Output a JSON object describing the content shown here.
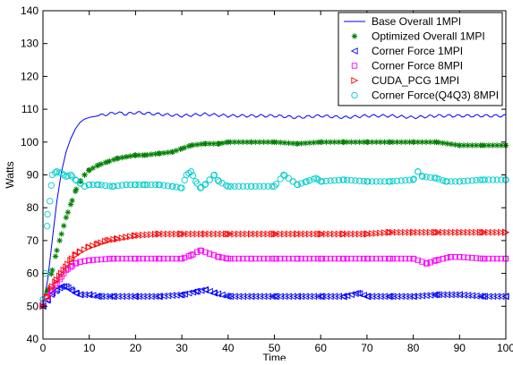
{
  "chart_data": {
    "type": "scatter",
    "title": "",
    "xlabel": "Time",
    "ylabel": "Watts",
    "xlim": [
      0,
      100
    ],
    "ylim": [
      40,
      140
    ],
    "xticks": [
      0,
      10,
      20,
      30,
      40,
      50,
      60,
      70,
      80,
      90,
      100
    ],
    "yticks": [
      40,
      50,
      60,
      70,
      80,
      90,
      100,
      110,
      120,
      130,
      140
    ],
    "grid": false,
    "legend_position": "top-right",
    "series": [
      {
        "name": "Base Overall 1MPI",
        "style": "line",
        "marker": "none",
        "color": "#0000ff",
        "points": [
          [
            0,
            50
          ],
          [
            1,
            58
          ],
          [
            2,
            70
          ],
          [
            3,
            82
          ],
          [
            4,
            91
          ],
          [
            5,
            97
          ],
          [
            6,
            101
          ],
          [
            7,
            104
          ],
          [
            8,
            106
          ],
          [
            9,
            107
          ],
          [
            10,
            107.5
          ],
          [
            12,
            108
          ],
          [
            14,
            108.5
          ],
          [
            16,
            109
          ],
          [
            18,
            108.5
          ],
          [
            20,
            109
          ],
          [
            25,
            108.5
          ],
          [
            30,
            108
          ],
          [
            35,
            108.5
          ],
          [
            40,
            108
          ],
          [
            45,
            108
          ],
          [
            50,
            108
          ],
          [
            55,
            107.5
          ],
          [
            60,
            108
          ],
          [
            65,
            107.5
          ],
          [
            70,
            108
          ],
          [
            75,
            108
          ],
          [
            80,
            107.5
          ],
          [
            85,
            108
          ],
          [
            90,
            108
          ],
          [
            95,
            108
          ],
          [
            100,
            108
          ]
        ]
      },
      {
        "name": "Optimized Overall 1MPI",
        "style": "markers",
        "marker": "asterisk",
        "color": "#008000",
        "points": [
          [
            0,
            50
          ],
          [
            1,
            55
          ],
          [
            2,
            61
          ],
          [
            3,
            67
          ],
          [
            4,
            72
          ],
          [
            5,
            77
          ],
          [
            6,
            81
          ],
          [
            7,
            85
          ],
          [
            8,
            88
          ],
          [
            9,
            90
          ],
          [
            10,
            91.5
          ],
          [
            12,
            93
          ],
          [
            14,
            94
          ],
          [
            16,
            95
          ],
          [
            18,
            95.5
          ],
          [
            20,
            96
          ],
          [
            22,
            96
          ],
          [
            25,
            96.5
          ],
          [
            28,
            97
          ],
          [
            30,
            98
          ],
          [
            32,
            99
          ],
          [
            35,
            99.5
          ],
          [
            38,
            99.5
          ],
          [
            40,
            100
          ],
          [
            45,
            100
          ],
          [
            50,
            100
          ],
          [
            55,
            99.5
          ],
          [
            60,
            100
          ],
          [
            65,
            100
          ],
          [
            70,
            100
          ],
          [
            75,
            100
          ],
          [
            80,
            100
          ],
          [
            85,
            100
          ],
          [
            90,
            99
          ],
          [
            95,
            99
          ],
          [
            100,
            99
          ]
        ]
      },
      {
        "name": "Corner Force 1MPI",
        "style": "markers",
        "marker": "triangle-left",
        "color": "#0000ff",
        "points": [
          [
            0,
            50
          ],
          [
            1,
            52
          ],
          [
            2,
            54
          ],
          [
            3,
            55
          ],
          [
            4,
            56
          ],
          [
            5,
            56
          ],
          [
            6,
            55
          ],
          [
            7,
            54
          ],
          [
            8,
            53.5
          ],
          [
            10,
            53.5
          ],
          [
            12,
            53
          ],
          [
            15,
            53
          ],
          [
            20,
            53
          ],
          [
            25,
            53
          ],
          [
            30,
            53.5
          ],
          [
            33,
            54.5
          ],
          [
            35,
            55
          ],
          [
            37,
            54
          ],
          [
            40,
            53
          ],
          [
            45,
            53
          ],
          [
            50,
            53
          ],
          [
            55,
            53
          ],
          [
            60,
            53
          ],
          [
            65,
            53
          ],
          [
            68,
            54
          ],
          [
            70,
            53
          ],
          [
            75,
            53
          ],
          [
            80,
            53
          ],
          [
            85,
            53.5
          ],
          [
            90,
            53.5
          ],
          [
            95,
            53
          ],
          [
            100,
            53
          ]
        ]
      },
      {
        "name": "Corner Force 8MPI",
        "style": "markers",
        "marker": "square",
        "color": "#ff00ff",
        "points": [
          [
            0,
            51
          ],
          [
            1,
            53
          ],
          [
            2,
            55
          ],
          [
            3,
            57
          ],
          [
            4,
            59
          ],
          [
            5,
            61
          ],
          [
            6,
            62
          ],
          [
            7,
            63
          ],
          [
            8,
            63.5
          ],
          [
            10,
            64
          ],
          [
            15,
            64.5
          ],
          [
            20,
            64.5
          ],
          [
            25,
            64.5
          ],
          [
            30,
            64.5
          ],
          [
            32,
            65.5
          ],
          [
            34,
            67
          ],
          [
            36,
            66
          ],
          [
            38,
            65
          ],
          [
            40,
            64.5
          ],
          [
            45,
            64.5
          ],
          [
            50,
            64.5
          ],
          [
            55,
            64.5
          ],
          [
            60,
            64.5
          ],
          [
            65,
            64.5
          ],
          [
            70,
            64.5
          ],
          [
            75,
            64.5
          ],
          [
            80,
            64.5
          ],
          [
            83,
            63
          ],
          [
            85,
            64
          ],
          [
            88,
            65
          ],
          [
            90,
            65
          ],
          [
            95,
            64.5
          ],
          [
            100,
            64.5
          ]
        ]
      },
      {
        "name": "CUDA_PCG 1MPI",
        "style": "markers",
        "marker": "triangle-right",
        "color": "#ff0000",
        "points": [
          [
            0,
            50
          ],
          [
            1,
            53
          ],
          [
            2,
            56
          ],
          [
            3,
            58
          ],
          [
            4,
            60
          ],
          [
            5,
            62
          ],
          [
            6,
            64
          ],
          [
            7,
            65.5
          ],
          [
            8,
            66.5
          ],
          [
            10,
            68
          ],
          [
            12,
            69
          ],
          [
            14,
            70
          ],
          [
            16,
            70.5
          ],
          [
            18,
            71
          ],
          [
            20,
            71.5
          ],
          [
            25,
            72
          ],
          [
            30,
            72
          ],
          [
            35,
            72
          ],
          [
            40,
            72
          ],
          [
            45,
            72
          ],
          [
            50,
            72
          ],
          [
            55,
            72
          ],
          [
            60,
            72
          ],
          [
            65,
            72
          ],
          [
            70,
            72
          ],
          [
            75,
            72.5
          ],
          [
            80,
            72.5
          ],
          [
            85,
            72.5
          ],
          [
            90,
            72.5
          ],
          [
            95,
            72.5
          ],
          [
            100,
            72.5
          ]
        ]
      },
      {
        "name": "Corner Force(Q4Q3) 8MPI",
        "style": "markers",
        "marker": "circle",
        "color": "#00cccc",
        "points": [
          [
            0,
            52
          ],
          [
            0.5,
            60
          ],
          [
            1,
            78
          ],
          [
            1.5,
            82
          ],
          [
            2,
            90
          ],
          [
            3,
            91
          ],
          [
            4,
            90.5
          ],
          [
            5,
            89.5
          ],
          [
            6,
            90
          ],
          [
            7,
            88.5
          ],
          [
            8,
            87.5
          ],
          [
            9,
            86.5
          ],
          [
            10,
            87
          ],
          [
            12,
            87
          ],
          [
            15,
            86.5
          ],
          [
            18,
            87
          ],
          [
            20,
            87
          ],
          [
            22,
            87
          ],
          [
            25,
            87
          ],
          [
            28,
            86.5
          ],
          [
            30,
            86
          ],
          [
            31,
            90
          ],
          [
            32,
            91
          ],
          [
            33,
            88
          ],
          [
            34,
            86
          ],
          [
            35,
            87
          ],
          [
            36,
            88.5
          ],
          [
            37,
            90
          ],
          [
            38,
            88
          ],
          [
            40,
            86.5
          ],
          [
            45,
            86.5
          ],
          [
            50,
            86.5
          ],
          [
            52,
            90
          ],
          [
            54,
            88
          ],
          [
            55,
            87
          ],
          [
            57,
            88
          ],
          [
            59,
            89
          ],
          [
            60,
            88
          ],
          [
            65,
            88.5
          ],
          [
            70,
            88
          ],
          [
            75,
            88
          ],
          [
            80,
            88.5
          ],
          [
            81,
            91
          ],
          [
            82,
            89.5
          ],
          [
            85,
            89
          ],
          [
            87,
            88
          ],
          [
            90,
            88
          ],
          [
            95,
            88.5
          ],
          [
            100,
            88.5
          ]
        ]
      }
    ]
  }
}
